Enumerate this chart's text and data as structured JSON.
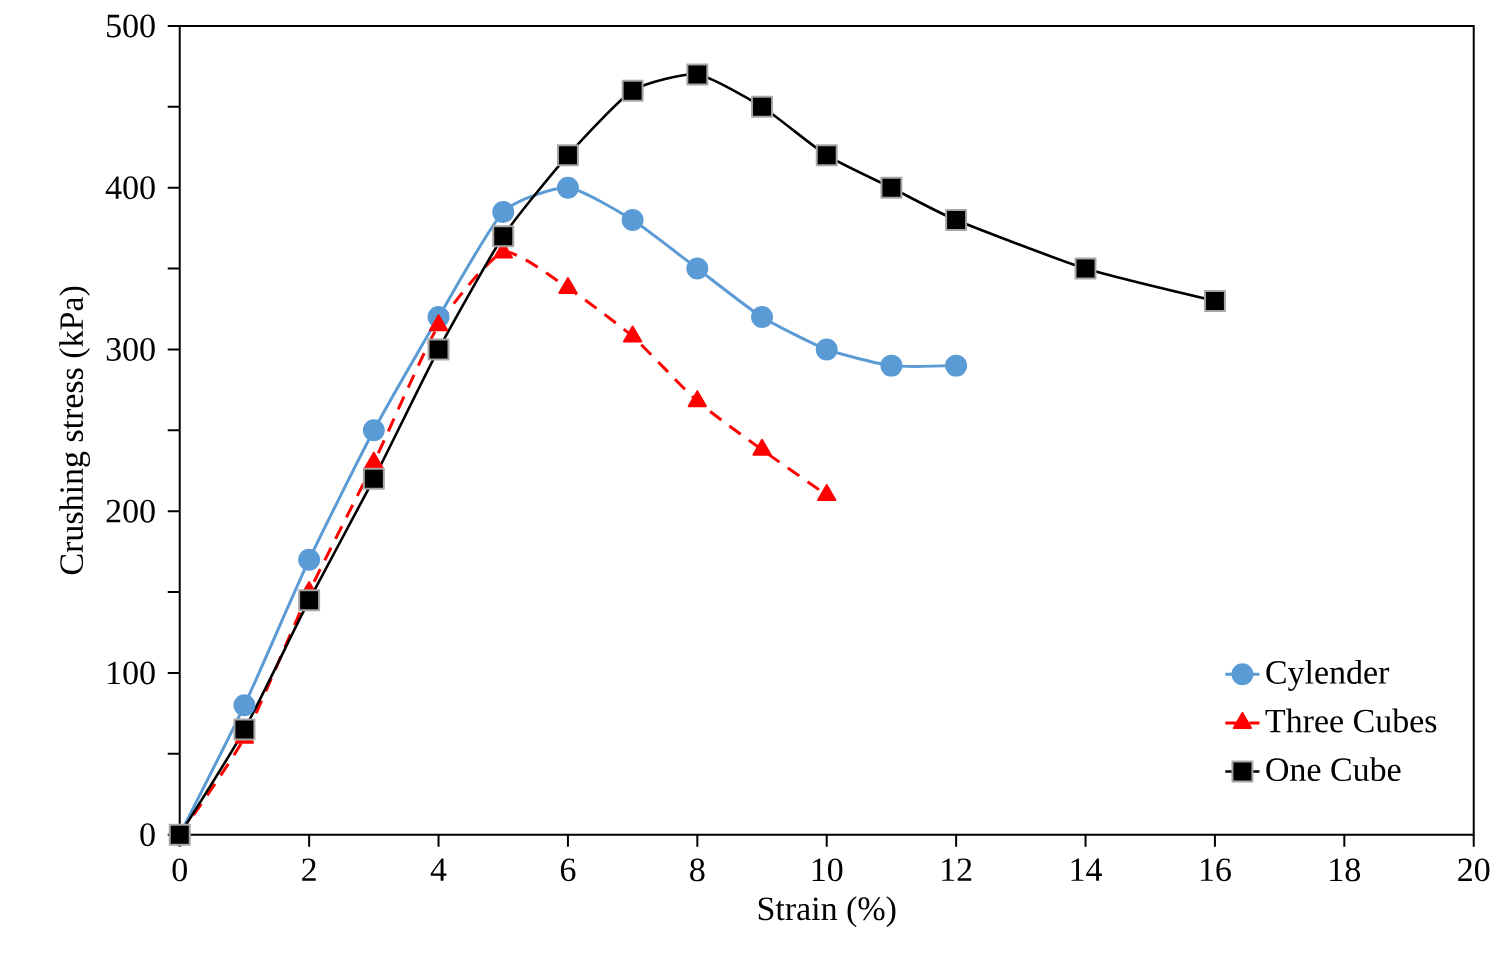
{
  "chart_data": {
    "type": "line",
    "xlabel": "Strain (%)",
    "ylabel": "Crushing stress (kPa)",
    "xlim": [
      0,
      20
    ],
    "xticks": [
      0,
      2,
      4,
      6,
      8,
      10,
      12,
      14,
      16,
      18,
      20
    ],
    "ylim": [
      0,
      500
    ],
    "yticks": [
      0,
      {
        "value": 50,
        "label": null
      },
      100,
      {
        "value": 150,
        "label": null
      },
      200,
      {
        "value": 250,
        "label": null
      },
      300,
      {
        "value": 350,
        "label": null
      },
      400,
      {
        "value": 450,
        "label": null
      },
      500
    ],
    "legend": "bottom right",
    "grid": false,
    "series": [
      {
        "name": "Cylender",
        "color": "#5b9bd5",
        "marker": "circle",
        "line_style": "solid",
        "x": [
          0,
          1,
          2,
          3,
          4,
          5,
          6,
          7,
          8,
          9,
          10,
          11,
          12
        ],
        "values": [
          0,
          80,
          170,
          250,
          320,
          385,
          400,
          380,
          350,
          320,
          300,
          290,
          290
        ]
      },
      {
        "name": "Three Cubes",
        "color": "#ff0000",
        "marker": "triangle",
        "line_style": "dashed",
        "x": [
          0,
          1,
          2,
          3,
          4,
          5,
          6,
          7,
          8,
          9,
          10
        ],
        "values": [
          0,
          60,
          150,
          230,
          315,
          360,
          338,
          308,
          268,
          238,
          210
        ]
      },
      {
        "name": "One Cube",
        "color": "#000000",
        "marker": "square",
        "line_style": "solid",
        "x": [
          0,
          1,
          2,
          3,
          4,
          5,
          6,
          7,
          8,
          9,
          10,
          11,
          12,
          14,
          16
        ],
        "values": [
          0,
          65,
          145,
          220,
          300,
          370,
          420,
          460,
          470,
          450,
          420,
          400,
          380,
          350,
          330
        ]
      }
    ]
  }
}
